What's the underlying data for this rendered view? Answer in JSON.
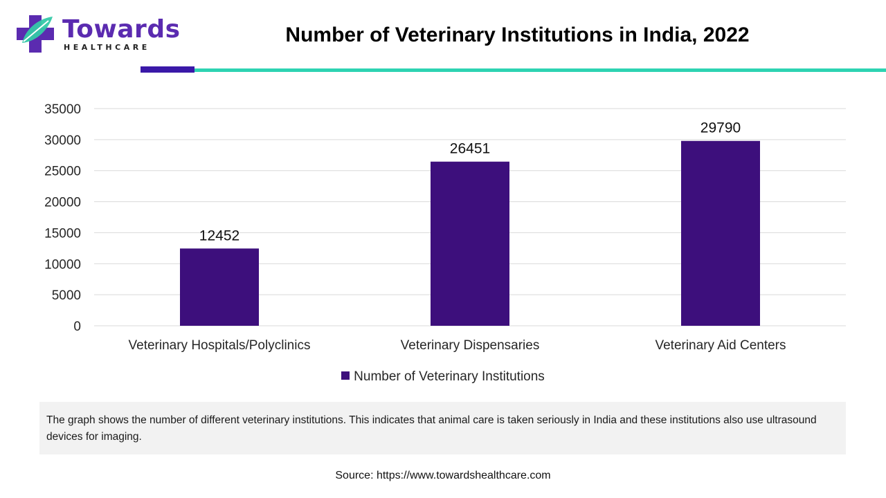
{
  "header": {
    "logo_word": "Towards",
    "logo_sub": "HEALTHCARE",
    "title": "Number of Veterinary Institutions in India, 2022"
  },
  "colors": {
    "bar": "#3d0f7c",
    "logo_purple": "#5b2bb0",
    "logo_teal": "#35c9a8",
    "accent_dark": "#3a18a8",
    "accent_teal": "#2ed3b2",
    "grid": "#d9d9d9",
    "box_bg": "#f2f2f2"
  },
  "chart_data": {
    "type": "bar",
    "title": "Number of Veterinary Institutions in India, 2022",
    "categories": [
      "Veterinary Hospitals/Polyclinics",
      "Veterinary Dispensaries",
      "Veterinary Aid Centers"
    ],
    "series": [
      {
        "name": "Number of Veterinary Institutions",
        "values": [
          12452,
          26451,
          29790
        ]
      }
    ],
    "ylim": [
      0,
      35000
    ],
    "yticks": [
      0,
      5000,
      10000,
      15000,
      20000,
      25000,
      30000,
      35000
    ],
    "grid": true,
    "legend_position": "bottom",
    "data_labels": true
  },
  "legend": {
    "label": "Number of Veterinary Institutions"
  },
  "description": "The graph shows the number of different veterinary institutions. This indicates that animal care is taken seriously in India and these institutions also use ultrasound devices for imaging.",
  "source": "Source: https://www.towardshealthcare.com"
}
